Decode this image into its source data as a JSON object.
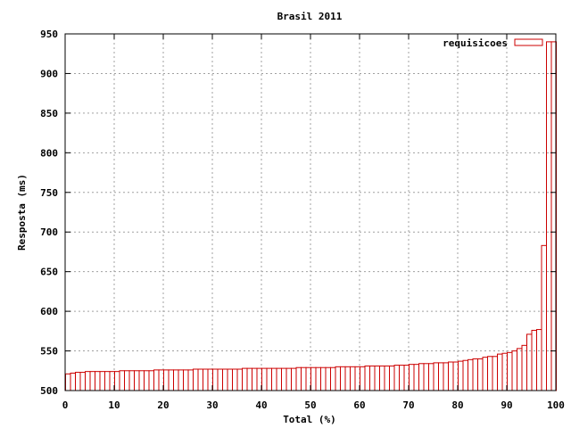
{
  "chart_data": {
    "type": "bar",
    "title": "Brasil 2011",
    "xlabel": "Total (%)",
    "ylabel": "Resposta (ms)",
    "xlim": [
      0,
      100
    ],
    "ylim": [
      500,
      950
    ],
    "xticks": [
      "0",
      "10",
      "20",
      "30",
      "40",
      "50",
      "60",
      "70",
      "80",
      "90",
      "100"
    ],
    "yticks": [
      "500",
      "550",
      "600",
      "650",
      "700",
      "750",
      "800",
      "850",
      "900",
      "950"
    ],
    "grid": true,
    "legend_position": "top-right",
    "series": [
      {
        "name": "requisicoes",
        "color": "#cc0000",
        "x": [
          0,
          1,
          2,
          3,
          4,
          5,
          6,
          7,
          8,
          9,
          10,
          11,
          12,
          13,
          14,
          15,
          16,
          17,
          18,
          19,
          20,
          21,
          22,
          23,
          24,
          25,
          26,
          27,
          28,
          29,
          30,
          31,
          32,
          33,
          34,
          35,
          36,
          37,
          38,
          39,
          40,
          41,
          42,
          43,
          44,
          45,
          46,
          47,
          48,
          49,
          50,
          51,
          52,
          53,
          54,
          55,
          56,
          57,
          58,
          59,
          60,
          61,
          62,
          63,
          64,
          65,
          66,
          67,
          68,
          69,
          70,
          71,
          72,
          73,
          74,
          75,
          76,
          77,
          78,
          79,
          80,
          81,
          82,
          83,
          84,
          85,
          86,
          87,
          88,
          89,
          90,
          91,
          92,
          93,
          94,
          95,
          96,
          97,
          98,
          99
        ],
        "values": [
          521,
          522,
          523,
          523,
          524,
          524,
          524,
          524,
          524,
          524,
          524,
          525,
          525,
          525,
          525,
          525,
          525,
          525,
          526,
          526,
          526,
          526,
          526,
          526,
          526,
          526,
          527,
          527,
          527,
          527,
          527,
          527,
          527,
          527,
          527,
          527,
          528,
          528,
          528,
          528,
          528,
          528,
          528,
          528,
          528,
          528,
          528,
          529,
          529,
          529,
          529,
          529,
          529,
          529,
          529,
          530,
          530,
          530,
          530,
          530,
          530,
          531,
          531,
          531,
          531,
          531,
          531,
          532,
          532,
          532,
          533,
          533,
          534,
          534,
          534,
          535,
          535,
          535,
          536,
          536,
          537,
          538,
          539,
          540,
          540,
          542,
          543,
          543,
          546,
          547,
          548,
          550,
          553,
          557,
          571,
          576,
          577,
          683,
          940,
          940
        ]
      }
    ]
  }
}
